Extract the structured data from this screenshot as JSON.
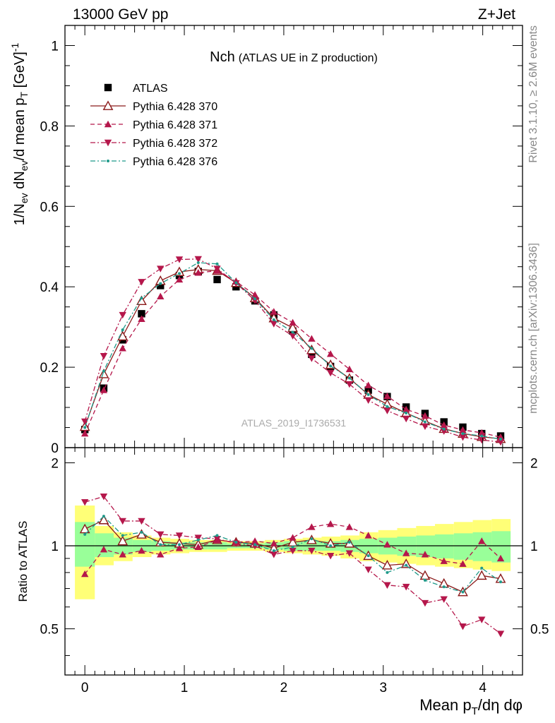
{
  "header": {
    "energy_label": "13000 GeV pp",
    "process_label": "Z+Jet"
  },
  "side_labels": {
    "rivet": "Rivet 3.1.10, ≥ 2.6M events",
    "mcplots": "mcplots.cern.ch [arXiv:1306.3436]"
  },
  "chart_data": [
    {
      "type": "line",
      "panel": "main",
      "title_main": "Nch",
      "title_sub": "(ATLAS UE in Z production)",
      "watermark": "ATLAS_2019_I1736531",
      "ylabel": "1/N_ev dN_ev/d mean p_T [GeV]^-1",
      "xlim": [
        -0.2,
        4.4
      ],
      "ylim": [
        0,
        1.05
      ],
      "y_ticks": [
        0,
        0.2,
        0.4,
        0.6,
        0.8,
        1
      ],
      "y_tick_labels": [
        "0",
        "0.2",
        "0.4",
        "0.6",
        "0.8",
        "1"
      ],
      "x": [
        0,
        0.19,
        0.38,
        0.57,
        0.76,
        0.95,
        1.14,
        1.33,
        1.52,
        1.71,
        1.9,
        2.09,
        2.28,
        2.47,
        2.66,
        2.85,
        3.04,
        3.23,
        3.42,
        3.61,
        3.8,
        3.99,
        4.18
      ],
      "series": [
        {
          "name": "ATLAS",
          "color": "#000000",
          "marker": "square",
          "line": "none",
          "values": [
            0.045,
            0.148,
            0.268,
            0.333,
            0.403,
            0.428,
            0.438,
            0.418,
            0.4,
            0.365,
            0.33,
            0.29,
            0.232,
            0.202,
            0.168,
            0.143,
            0.127,
            0.101,
            0.085,
            0.064,
            0.051,
            0.035,
            0.029
          ]
        },
        {
          "name": "Pythia 6.428 370",
          "color": "#8b1a1a",
          "marker": "triangle-open",
          "line": "solid",
          "values": [
            0.052,
            0.183,
            0.277,
            0.365,
            0.415,
            0.437,
            0.443,
            0.44,
            0.41,
            0.372,
            0.322,
            0.298,
            0.243,
            0.206,
            0.172,
            0.132,
            0.108,
            0.086,
            0.066,
            0.047,
            0.035,
            0.027,
            0.022
          ]
        },
        {
          "name": "Pythia 6.428 371",
          "color": "#b5174b",
          "marker": "triangle-up",
          "line": "dashed",
          "values": [
            0.035,
            0.143,
            0.247,
            0.32,
            0.376,
            0.418,
            0.435,
            0.44,
            0.413,
            0.38,
            0.338,
            0.311,
            0.271,
            0.233,
            0.195,
            0.155,
            0.128,
            0.095,
            0.079,
            0.056,
            0.044,
            0.037,
            0.026
          ]
        },
        {
          "name": "Pythia 6.428 372",
          "color": "#b5174b",
          "marker": "triangle-down",
          "line": "dashdot",
          "values": [
            0.065,
            0.228,
            0.33,
            0.412,
            0.445,
            0.468,
            0.469,
            0.445,
            0.409,
            0.366,
            0.308,
            0.278,
            0.222,
            0.186,
            0.158,
            0.118,
            0.092,
            0.072,
            0.053,
            0.041,
            0.026,
            0.019,
            0.014
          ]
        },
        {
          "name": "Pythia 6.428 376",
          "color": "#1f9a8a",
          "marker": "dot",
          "line": "dashdot",
          "values": [
            0.05,
            0.19,
            0.293,
            0.372,
            0.408,
            0.433,
            0.46,
            0.457,
            0.41,
            0.37,
            0.318,
            0.287,
            0.247,
            0.203,
            0.173,
            0.132,
            0.102,
            0.086,
            0.064,
            0.046,
            0.035,
            0.029,
            0.021
          ]
        }
      ]
    },
    {
      "type": "line",
      "panel": "ratio",
      "ylabel": "Ratio to ATLAS",
      "xlabel": "Mean p_T/dη dφ",
      "xlim": [
        -0.2,
        4.4
      ],
      "ylim": [
        0.34,
        2.27
      ],
      "x_ticks": [
        0,
        1,
        2,
        3,
        4
      ],
      "x_tick_labels": [
        "0",
        "1",
        "2",
        "3",
        "4"
      ],
      "y_ticks": [
        0.5,
        1,
        2
      ],
      "y_tick_labels": [
        "0.5",
        "1",
        "2"
      ],
      "reference_line": 1,
      "band_edges": [
        -0.1,
        0.1,
        0.29,
        0.48,
        0.67,
        0.86,
        1.05,
        1.24,
        1.43,
        1.62,
        1.81,
        2.0,
        2.19,
        2.38,
        2.57,
        2.76,
        2.95,
        3.14,
        3.33,
        3.52,
        3.71,
        3.9,
        4.09,
        4.28
      ],
      "band_inner": {
        "color": "#99ff99",
        "lo": [
          0.84,
          0.91,
          0.93,
          0.95,
          0.96,
          0.97,
          0.97,
          0.97,
          0.98,
          0.98,
          0.97,
          0.96,
          0.96,
          0.96,
          0.95,
          0.94,
          0.93,
          0.92,
          0.91,
          0.9,
          0.89,
          0.88,
          0.87
        ],
        "hi": [
          1.22,
          1.11,
          1.07,
          1.05,
          1.04,
          1.03,
          1.03,
          1.03,
          1.02,
          1.02,
          1.03,
          1.04,
          1.04,
          1.04,
          1.05,
          1.06,
          1.07,
          1.08,
          1.09,
          1.1,
          1.11,
          1.12,
          1.13
        ]
      },
      "band_outer": {
        "color": "#ffff77",
        "lo": [
          0.64,
          0.85,
          0.88,
          0.91,
          0.93,
          0.94,
          0.95,
          0.95,
          0.96,
          0.96,
          0.95,
          0.94,
          0.93,
          0.92,
          0.9,
          0.88,
          0.87,
          0.86,
          0.85,
          0.84,
          0.83,
          0.82,
          0.81
        ]
      },
      "band_outer_hi": [
        1.4,
        1.18,
        1.12,
        1.09,
        1.07,
        1.06,
        1.05,
        1.05,
        1.04,
        1.04,
        1.05,
        1.06,
        1.07,
        1.08,
        1.09,
        1.12,
        1.14,
        1.16,
        1.18,
        1.2,
        1.22,
        1.24,
        1.25
      ],
      "x": [
        0,
        0.19,
        0.38,
        0.57,
        0.76,
        0.95,
        1.14,
        1.33,
        1.52,
        1.71,
        1.9,
        2.09,
        2.28,
        2.47,
        2.66,
        2.85,
        3.04,
        3.23,
        3.42,
        3.61,
        3.8,
        3.99,
        4.18
      ],
      "series": [
        {
          "name": "Pythia 6.428 370",
          "color": "#8b1a1a",
          "marker": "triangle-open",
          "line": "solid",
          "values": [
            1.15,
            1.24,
            1.04,
            1.1,
            1.03,
            1.02,
            1.01,
            1.05,
            1.03,
            1.02,
            0.98,
            1.03,
            1.05,
            1.02,
            1.02,
            0.92,
            0.85,
            0.86,
            0.78,
            0.73,
            0.68,
            0.78,
            0.76
          ]
        },
        {
          "name": "Pythia 6.428 371",
          "color": "#b5174b",
          "marker": "triangle-up",
          "line": "dashed",
          "values": [
            0.79,
            0.97,
            0.93,
            0.96,
            0.93,
            0.98,
            0.99,
            1.05,
            1.03,
            1.04,
            1.02,
            1.07,
            1.17,
            1.2,
            1.17,
            1.09,
            1.01,
            0.94,
            0.93,
            0.88,
            0.86,
            1.04,
            0.9
          ]
        },
        {
          "name": "Pythia 6.428 372",
          "color": "#b5174b",
          "marker": "triangle-down",
          "line": "dashdot",
          "values": [
            1.44,
            1.51,
            1.23,
            1.23,
            1.1,
            1.09,
            1.07,
            1.06,
            1.02,
            1.0,
            0.93,
            0.96,
            0.96,
            0.92,
            0.94,
            0.82,
            0.72,
            0.71,
            0.62,
            0.64,
            0.51,
            0.54,
            0.48
          ]
        },
        {
          "name": "Pythia 6.428 376",
          "color": "#1f9a8a",
          "marker": "dot",
          "line": "dashdot",
          "values": [
            1.1,
            1.28,
            1.09,
            1.12,
            1.01,
            1.01,
            1.05,
            1.09,
            1.03,
            1.01,
            0.96,
            0.99,
            1.06,
            1.0,
            1.03,
            0.92,
            0.8,
            0.85,
            0.75,
            0.71,
            0.68,
            0.83,
            0.74
          ]
        }
      ]
    }
  ]
}
